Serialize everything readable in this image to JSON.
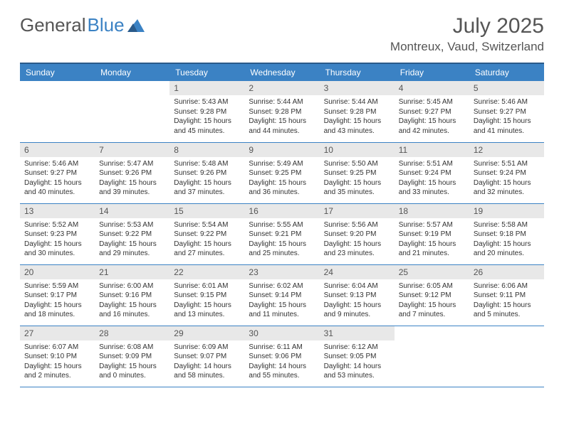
{
  "brand": {
    "part1": "General",
    "part2": "Blue"
  },
  "title": "July 2025",
  "location": "Montreux, Vaud, Switzerland",
  "colors": {
    "header_bg": "#3b82c4",
    "header_border": "#2a5a8a",
    "daynum_bg": "#e8e8e8",
    "cell_border": "#3b82c4",
    "text": "#333333",
    "title_text": "#555555"
  },
  "daysOfWeek": [
    "Sunday",
    "Monday",
    "Tuesday",
    "Wednesday",
    "Thursday",
    "Friday",
    "Saturday"
  ],
  "weeks": [
    [
      null,
      null,
      {
        "n": "1",
        "sr": "5:43 AM",
        "ss": "9:28 PM",
        "dl": "15 hours and 45 minutes."
      },
      {
        "n": "2",
        "sr": "5:44 AM",
        "ss": "9:28 PM",
        "dl": "15 hours and 44 minutes."
      },
      {
        "n": "3",
        "sr": "5:44 AM",
        "ss": "9:28 PM",
        "dl": "15 hours and 43 minutes."
      },
      {
        "n": "4",
        "sr": "5:45 AM",
        "ss": "9:27 PM",
        "dl": "15 hours and 42 minutes."
      },
      {
        "n": "5",
        "sr": "5:46 AM",
        "ss": "9:27 PM",
        "dl": "15 hours and 41 minutes."
      }
    ],
    [
      {
        "n": "6",
        "sr": "5:46 AM",
        "ss": "9:27 PM",
        "dl": "15 hours and 40 minutes."
      },
      {
        "n": "7",
        "sr": "5:47 AM",
        "ss": "9:26 PM",
        "dl": "15 hours and 39 minutes."
      },
      {
        "n": "8",
        "sr": "5:48 AM",
        "ss": "9:26 PM",
        "dl": "15 hours and 37 minutes."
      },
      {
        "n": "9",
        "sr": "5:49 AM",
        "ss": "9:25 PM",
        "dl": "15 hours and 36 minutes."
      },
      {
        "n": "10",
        "sr": "5:50 AM",
        "ss": "9:25 PM",
        "dl": "15 hours and 35 minutes."
      },
      {
        "n": "11",
        "sr": "5:51 AM",
        "ss": "9:24 PM",
        "dl": "15 hours and 33 minutes."
      },
      {
        "n": "12",
        "sr": "5:51 AM",
        "ss": "9:24 PM",
        "dl": "15 hours and 32 minutes."
      }
    ],
    [
      {
        "n": "13",
        "sr": "5:52 AM",
        "ss": "9:23 PM",
        "dl": "15 hours and 30 minutes."
      },
      {
        "n": "14",
        "sr": "5:53 AM",
        "ss": "9:22 PM",
        "dl": "15 hours and 29 minutes."
      },
      {
        "n": "15",
        "sr": "5:54 AM",
        "ss": "9:22 PM",
        "dl": "15 hours and 27 minutes."
      },
      {
        "n": "16",
        "sr": "5:55 AM",
        "ss": "9:21 PM",
        "dl": "15 hours and 25 minutes."
      },
      {
        "n": "17",
        "sr": "5:56 AM",
        "ss": "9:20 PM",
        "dl": "15 hours and 23 minutes."
      },
      {
        "n": "18",
        "sr": "5:57 AM",
        "ss": "9:19 PM",
        "dl": "15 hours and 21 minutes."
      },
      {
        "n": "19",
        "sr": "5:58 AM",
        "ss": "9:18 PM",
        "dl": "15 hours and 20 minutes."
      }
    ],
    [
      {
        "n": "20",
        "sr": "5:59 AM",
        "ss": "9:17 PM",
        "dl": "15 hours and 18 minutes."
      },
      {
        "n": "21",
        "sr": "6:00 AM",
        "ss": "9:16 PM",
        "dl": "15 hours and 16 minutes."
      },
      {
        "n": "22",
        "sr": "6:01 AM",
        "ss": "9:15 PM",
        "dl": "15 hours and 13 minutes."
      },
      {
        "n": "23",
        "sr": "6:02 AM",
        "ss": "9:14 PM",
        "dl": "15 hours and 11 minutes."
      },
      {
        "n": "24",
        "sr": "6:04 AM",
        "ss": "9:13 PM",
        "dl": "15 hours and 9 minutes."
      },
      {
        "n": "25",
        "sr": "6:05 AM",
        "ss": "9:12 PM",
        "dl": "15 hours and 7 minutes."
      },
      {
        "n": "26",
        "sr": "6:06 AM",
        "ss": "9:11 PM",
        "dl": "15 hours and 5 minutes."
      }
    ],
    [
      {
        "n": "27",
        "sr": "6:07 AM",
        "ss": "9:10 PM",
        "dl": "15 hours and 2 minutes."
      },
      {
        "n": "28",
        "sr": "6:08 AM",
        "ss": "9:09 PM",
        "dl": "15 hours and 0 minutes."
      },
      {
        "n": "29",
        "sr": "6:09 AM",
        "ss": "9:07 PM",
        "dl": "14 hours and 58 minutes."
      },
      {
        "n": "30",
        "sr": "6:11 AM",
        "ss": "9:06 PM",
        "dl": "14 hours and 55 minutes."
      },
      {
        "n": "31",
        "sr": "6:12 AM",
        "ss": "9:05 PM",
        "dl": "14 hours and 53 minutes."
      },
      null,
      null
    ]
  ],
  "labels": {
    "sunrise": "Sunrise: ",
    "sunset": "Sunset: ",
    "daylight": "Daylight: "
  }
}
